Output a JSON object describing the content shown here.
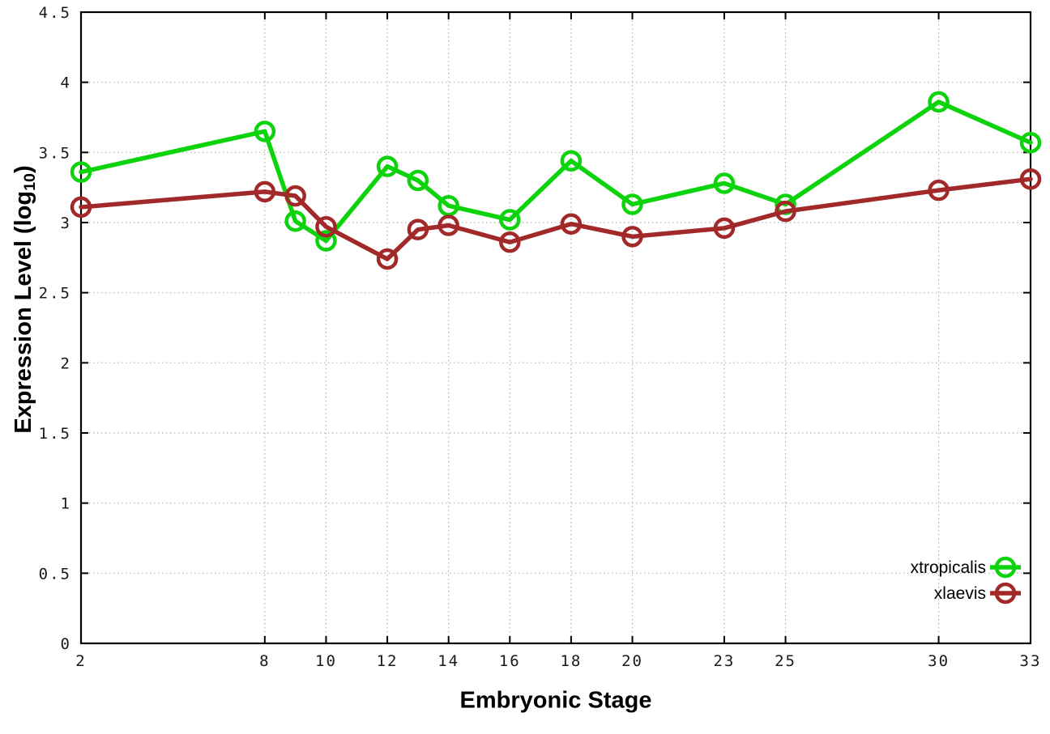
{
  "chart_data": {
    "type": "line",
    "xlabel": "Embryonic Stage",
    "ylabel_main": "Expression Level (log",
    "ylabel_sub": "10",
    "ylabel_close": ")",
    "x": [
      2,
      8,
      9,
      10,
      12,
      13,
      14,
      16,
      18,
      20,
      23,
      25,
      30,
      33
    ],
    "series": [
      {
        "name": "xtropicalis",
        "color": "#0cd30c",
        "values": [
          3.36,
          3.65,
          3.01,
          2.87,
          3.4,
          3.3,
          3.12,
          3.02,
          3.44,
          3.13,
          3.28,
          3.13,
          3.86,
          3.57
        ]
      },
      {
        "name": "xlaevis",
        "color": "#a12929",
        "values": [
          3.11,
          3.22,
          3.19,
          2.97,
          2.74,
          2.95,
          2.98,
          2.86,
          2.99,
          2.9,
          2.96,
          3.08,
          3.23,
          3.31
        ]
      }
    ],
    "xticks": [
      2,
      8,
      10,
      12,
      14,
      16,
      18,
      20,
      23,
      25,
      30,
      33
    ],
    "xtick_labels": [
      "2",
      "8",
      "10",
      "12",
      "14",
      "16",
      "18",
      "20",
      "23",
      "25",
      "30",
      "33"
    ],
    "yticks": [
      0,
      0.5,
      1,
      1.5,
      2,
      2.5,
      3,
      3.5,
      4,
      4.5
    ],
    "ytick_labels": [
      "0",
      "0.5",
      "1",
      "1.5",
      "2",
      "2.5",
      "3",
      "3.5",
      "4",
      "4.5"
    ],
    "xlim": [
      2,
      33
    ],
    "ylim": [
      0,
      4.5
    ],
    "grid": true,
    "legend_position": "inside-bottom-right",
    "colors": {
      "background": "#ffffff",
      "border": "#000000",
      "grid": "#b0b0b0",
      "tick": "#000000",
      "tick_label": "#1a1a1a"
    }
  }
}
